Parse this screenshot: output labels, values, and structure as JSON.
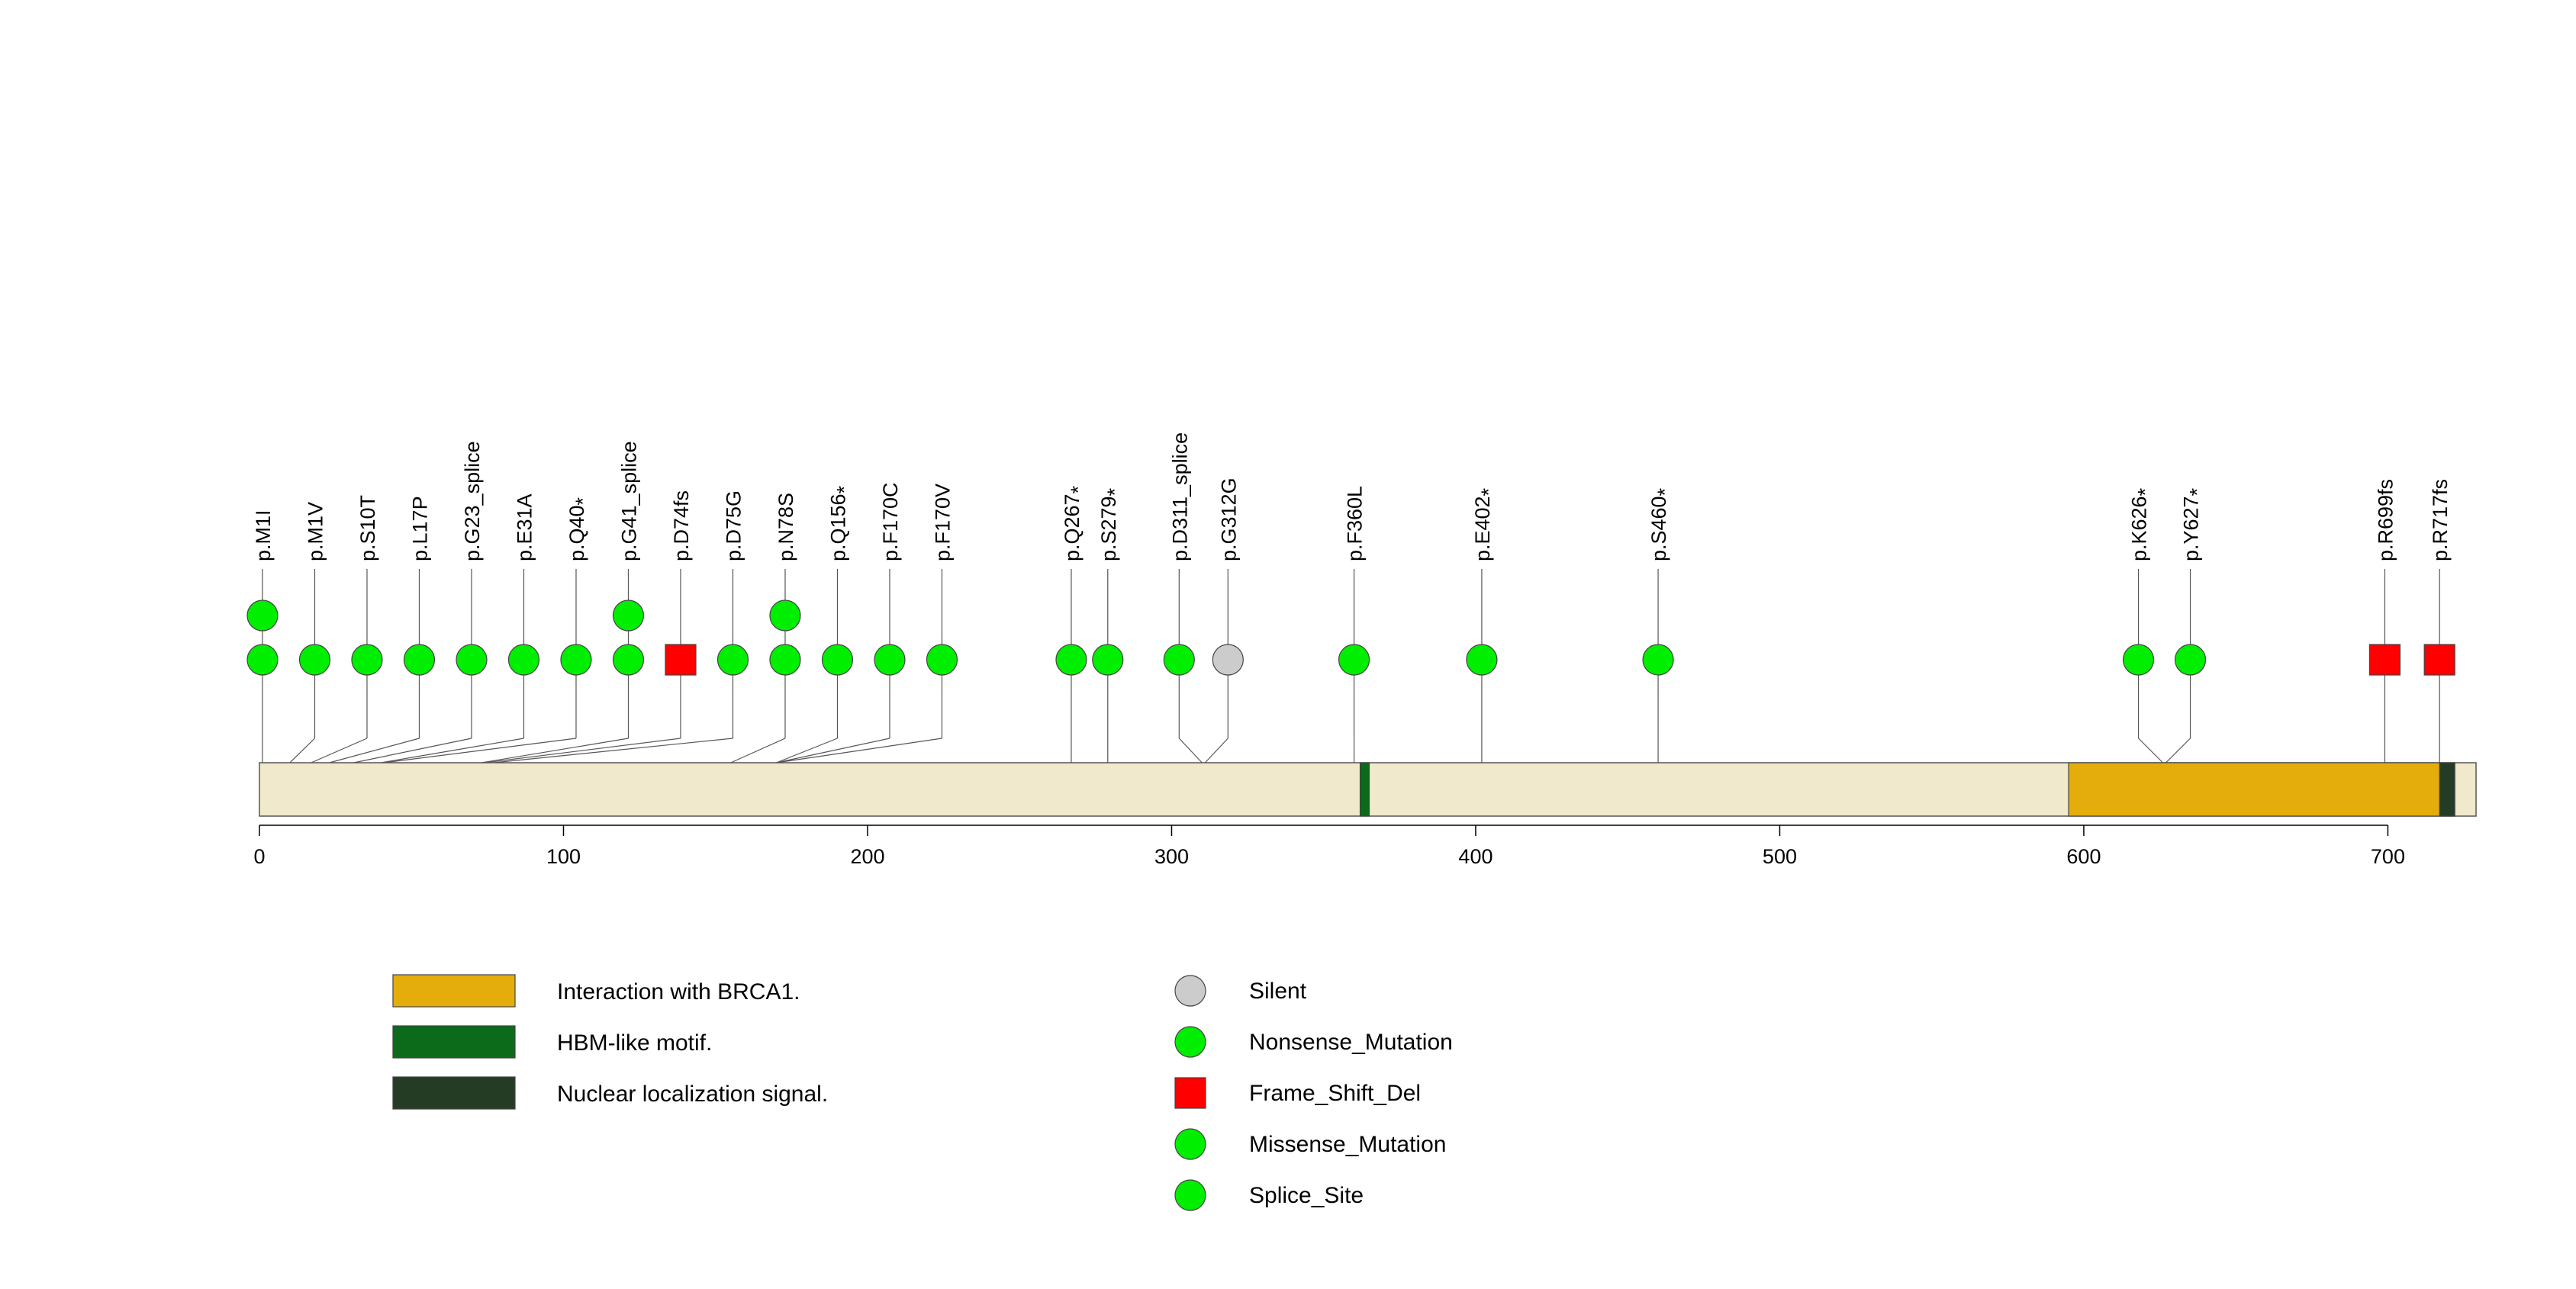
{
  "chart_data": {
    "type": "lollipop",
    "protein_length": 729,
    "x_ticks": [
      0,
      100,
      200,
      300,
      400,
      500,
      600,
      700
    ],
    "colors": {
      "backbone": "#f0e9cc",
      "Silent": "#cccccc",
      "Nonsense_Mutation": "#00ee00",
      "Frame_Shift_Del": "#ff0000",
      "Missense_Mutation": "#00ee00",
      "Splice_Site": "#00ee00"
    },
    "domains": [
      {
        "name": "Interaction with BRCA1.",
        "start": 595,
        "end": 722,
        "color": "#e5ad0b"
      },
      {
        "name": "HBM-like motif.",
        "start": 362,
        "end": 365,
        "color": "#0b6b1b"
      },
      {
        "name": "Nuclear localization signal.",
        "start": 717,
        "end": 722,
        "color": "#243c24"
      }
    ],
    "mutations": [
      {
        "label": "p.M1I",
        "star": false,
        "pos": 1,
        "count": 2,
        "shape": "circle",
        "type": "Missense_Mutation"
      },
      {
        "label": "p.M1V",
        "star": false,
        "pos": 10,
        "count": 1,
        "shape": "circle",
        "type": "Missense_Mutation"
      },
      {
        "label": "p.S10T",
        "star": false,
        "pos": 17,
        "count": 1,
        "shape": "circle",
        "type": "Missense_Mutation"
      },
      {
        "label": "p.L17P",
        "star": false,
        "pos": 23,
        "count": 1,
        "shape": "circle",
        "type": "Missense_Mutation"
      },
      {
        "label": "p.G23_splice",
        "star": false,
        "pos": 31,
        "count": 1,
        "shape": "circle",
        "type": "Splice_Site"
      },
      {
        "label": "p.E31A",
        "star": false,
        "pos": 40,
        "count": 1,
        "shape": "circle",
        "type": "Missense_Mutation"
      },
      {
        "label": "p.Q40",
        "star": true,
        "pos": 41,
        "count": 1,
        "shape": "circle",
        "type": "Nonsense_Mutation"
      },
      {
        "label": "p.G41_splice",
        "star": false,
        "pos": 73,
        "count": 2,
        "shape": "circle",
        "type": "Splice_Site"
      },
      {
        "label": "p.D74fs",
        "star": false,
        "pos": 74,
        "count": 1,
        "shape": "square",
        "type": "Frame_Shift_Del"
      },
      {
        "label": "p.D75G",
        "star": false,
        "pos": 77,
        "count": 1,
        "shape": "circle",
        "type": "Missense_Mutation"
      },
      {
        "label": "p.N78S",
        "star": false,
        "pos": 155,
        "count": 2,
        "shape": "circle",
        "type": "Missense_Mutation"
      },
      {
        "label": "p.Q156",
        "star": true,
        "pos": 170,
        "count": 1,
        "shape": "circle",
        "type": "Nonsense_Mutation"
      },
      {
        "label": "p.F170C",
        "star": false,
        "pos": 170,
        "count": 1,
        "shape": "circle",
        "type": "Missense_Mutation"
      },
      {
        "label": "p.F170V",
        "star": false,
        "pos": 170,
        "count": 1,
        "shape": "circle",
        "type": "Missense_Mutation"
      },
      {
        "label": "p.Q267",
        "star": true,
        "pos": 267,
        "count": 1,
        "shape": "circle",
        "type": "Nonsense_Mutation"
      },
      {
        "label": "p.S279",
        "star": true,
        "pos": 279,
        "count": 1,
        "shape": "circle",
        "type": "Nonsense_Mutation"
      },
      {
        "label": "p.D311_splice",
        "star": false,
        "pos": 310,
        "count": 1,
        "shape": "circle",
        "type": "Splice_Site"
      },
      {
        "label": "p.G312G",
        "star": false,
        "pos": 311,
        "count": 1,
        "shape": "circle",
        "type": "Silent"
      },
      {
        "label": "p.F360L",
        "star": false,
        "pos": 360,
        "count": 1,
        "shape": "circle",
        "type": "Missense_Mutation"
      },
      {
        "label": "p.E402",
        "star": true,
        "pos": 402,
        "count": 1,
        "shape": "circle",
        "type": "Nonsense_Mutation"
      },
      {
        "label": "p.S460",
        "star": true,
        "pos": 460,
        "count": 1,
        "shape": "circle",
        "type": "Nonsense_Mutation"
      },
      {
        "label": "p.K626",
        "star": true,
        "pos": 626,
        "count": 1,
        "shape": "circle",
        "type": "Nonsense_Mutation"
      },
      {
        "label": "p.Y627",
        "star": true,
        "pos": 627,
        "count": 1,
        "shape": "circle",
        "type": "Nonsense_Mutation"
      },
      {
        "label": "p.R699fs",
        "star": false,
        "pos": 699,
        "count": 1,
        "shape": "square",
        "type": "Frame_Shift_Del"
      },
      {
        "label": "p.R717fs",
        "star": false,
        "pos": 717,
        "count": 1,
        "shape": "square",
        "type": "Frame_Shift_Del"
      }
    ],
    "legend": {
      "domains": [
        "Interaction with BRCA1.",
        "HBM-like motif.",
        "Nuclear localization signal."
      ],
      "mutation_types": [
        {
          "name": "Silent",
          "shape": "circle"
        },
        {
          "name": "Nonsense_Mutation",
          "shape": "circle"
        },
        {
          "name": "Frame_Shift_Del",
          "shape": "square"
        },
        {
          "name": "Missense_Mutation",
          "shape": "circle"
        },
        {
          "name": "Splice_Site",
          "shape": "circle"
        }
      ]
    },
    "star_glyph": "*"
  }
}
